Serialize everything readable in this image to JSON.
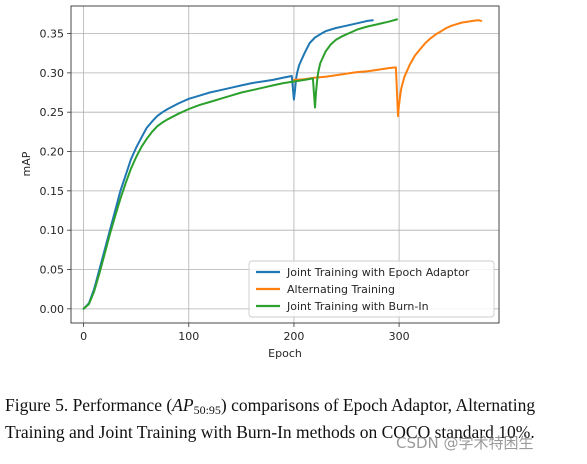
{
  "chart_data": {
    "type": "line",
    "title": "",
    "xlabel": "Epoch",
    "ylabel": "mAP",
    "xlim": [
      -12,
      395
    ],
    "ylim": [
      -0.018,
      0.385
    ],
    "xticks": [
      0,
      100,
      200,
      300
    ],
    "yticks": [
      0.0,
      0.05,
      0.1,
      0.15,
      0.2,
      0.25,
      0.3,
      0.35
    ],
    "ytick_labels": [
      "0.00",
      "0.05",
      "0.10",
      "0.15",
      "0.20",
      "0.25",
      "0.30",
      "0.35"
    ],
    "grid": true,
    "legend_position": "lower-right",
    "series": [
      {
        "name": "Joint Training with Epoch Adaptor",
        "color": "#1f77b4",
        "x": [
          0,
          5,
          10,
          15,
          20,
          25,
          30,
          35,
          40,
          45,
          50,
          55,
          60,
          65,
          70,
          75,
          80,
          90,
          100,
          110,
          120,
          130,
          140,
          150,
          160,
          170,
          180,
          190,
          198,
          199,
          200,
          201,
          202,
          203,
          205,
          210,
          215,
          220,
          225,
          230,
          240,
          250,
          260,
          270,
          275
        ],
        "y": [
          0.0,
          0.007,
          0.025,
          0.05,
          0.075,
          0.1,
          0.125,
          0.15,
          0.17,
          0.19,
          0.205,
          0.218,
          0.23,
          0.238,
          0.245,
          0.25,
          0.254,
          0.261,
          0.267,
          0.271,
          0.275,
          0.278,
          0.281,
          0.284,
          0.287,
          0.289,
          0.291,
          0.294,
          0.296,
          0.28,
          0.266,
          0.278,
          0.292,
          0.3,
          0.31,
          0.325,
          0.338,
          0.345,
          0.349,
          0.353,
          0.357,
          0.36,
          0.363,
          0.366,
          0.367
        ]
      },
      {
        "name": "Alternating Training",
        "color": "#ff7f0e",
        "x": [
          200,
          210,
          220,
          230,
          240,
          250,
          260,
          270,
          280,
          290,
          297,
          298,
          299,
          300,
          301,
          302,
          305,
          310,
          315,
          320,
          325,
          330,
          335,
          340,
          345,
          350,
          355,
          360,
          365,
          370,
          375,
          378
        ],
        "y": [
          0.291,
          0.292,
          0.294,
          0.295,
          0.297,
          0.299,
          0.301,
          0.302,
          0.304,
          0.306,
          0.307,
          0.275,
          0.245,
          0.26,
          0.27,
          0.28,
          0.295,
          0.31,
          0.322,
          0.33,
          0.338,
          0.344,
          0.349,
          0.353,
          0.357,
          0.36,
          0.362,
          0.364,
          0.365,
          0.366,
          0.367,
          0.366
        ]
      },
      {
        "name": "Joint Training with Burn-In",
        "color": "#2ca02c",
        "x": [
          0,
          5,
          10,
          15,
          20,
          25,
          30,
          35,
          40,
          45,
          50,
          55,
          60,
          65,
          70,
          75,
          80,
          90,
          100,
          110,
          120,
          130,
          140,
          150,
          160,
          170,
          180,
          190,
          200,
          210,
          218,
          219,
          220,
          221,
          222,
          223,
          225,
          230,
          235,
          240,
          245,
          250,
          255,
          260,
          265,
          270,
          280,
          290,
          298
        ],
        "y": [
          0.0,
          0.006,
          0.022,
          0.045,
          0.07,
          0.095,
          0.118,
          0.14,
          0.16,
          0.178,
          0.193,
          0.206,
          0.216,
          0.225,
          0.232,
          0.237,
          0.241,
          0.248,
          0.254,
          0.259,
          0.263,
          0.267,
          0.271,
          0.275,
          0.278,
          0.281,
          0.284,
          0.287,
          0.289,
          0.291,
          0.293,
          0.275,
          0.256,
          0.275,
          0.29,
          0.3,
          0.312,
          0.327,
          0.336,
          0.342,
          0.346,
          0.349,
          0.352,
          0.355,
          0.357,
          0.359,
          0.362,
          0.365,
          0.368
        ]
      }
    ]
  },
  "caption": {
    "prefix": "Figure 5. Performance (",
    "math_main": "AP",
    "math_sub": "50:95",
    "suffix": ") comparisons of Epoch Adaptor, Alternating Training and Joint Training with Burn-In methods on COCO standard 10%."
  },
  "watermark": "CSDN @学术特困生"
}
